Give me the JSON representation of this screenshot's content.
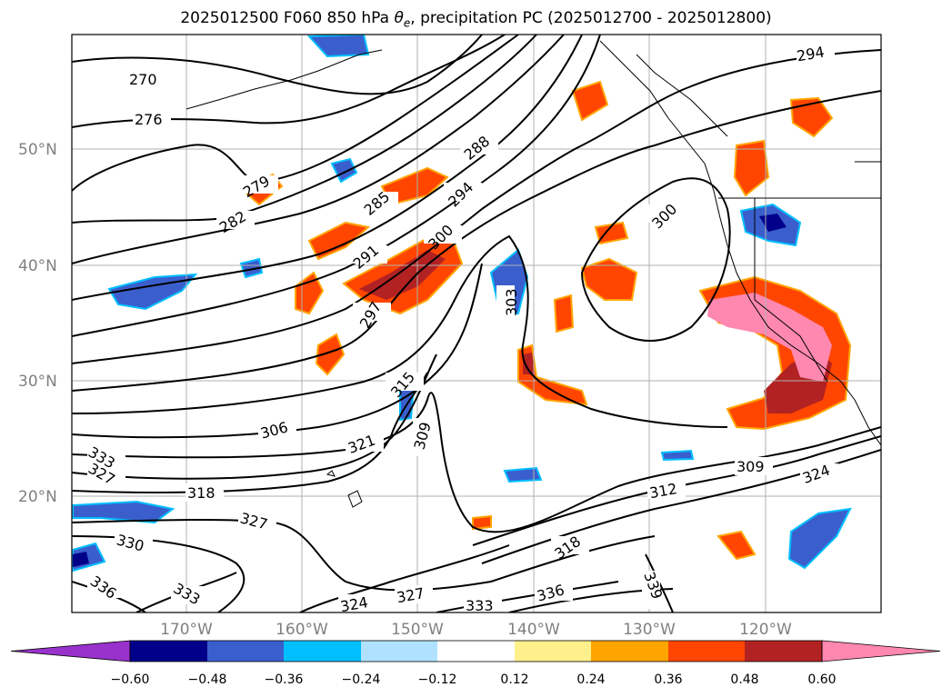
{
  "title": {
    "prefix": "2025012500 F060 850 hPa",
    "theta_symbol": "θ",
    "theta_sub": "e",
    "suffix": ", precipitation PC (2025012700 - 2025012800)"
  },
  "map": {
    "lat_labels": [
      "50°N",
      "40°N",
      "30°N",
      "20°N"
    ],
    "lon_labels": [
      "170°W",
      "160°W",
      "150°W",
      "140°W",
      "130°W",
      "120°W"
    ],
    "gridlines": true,
    "contour_labels": [
      "270",
      "276",
      "279",
      "282",
      "285",
      "288",
      "291",
      "294",
      "297",
      "300",
      "303",
      "306",
      "309",
      "312",
      "315",
      "318",
      "321",
      "324",
      "327",
      "330",
      "333",
      "336",
      "339"
    ]
  },
  "colorbar": {
    "ticks": [
      "−0.60",
      "−0.48",
      "−0.36",
      "−0.24",
      "−0.12",
      "0.12",
      "0.24",
      "0.36",
      "0.48",
      "0.60"
    ],
    "colors": [
      "#9932cc",
      "#00008b",
      "#3a5fcd",
      "#00bfff",
      "#b0e2ff",
      "#ffffff",
      "#fff08c",
      "#ffa500",
      "#ff4500",
      "#b22222",
      "#ff88b0"
    ]
  }
}
